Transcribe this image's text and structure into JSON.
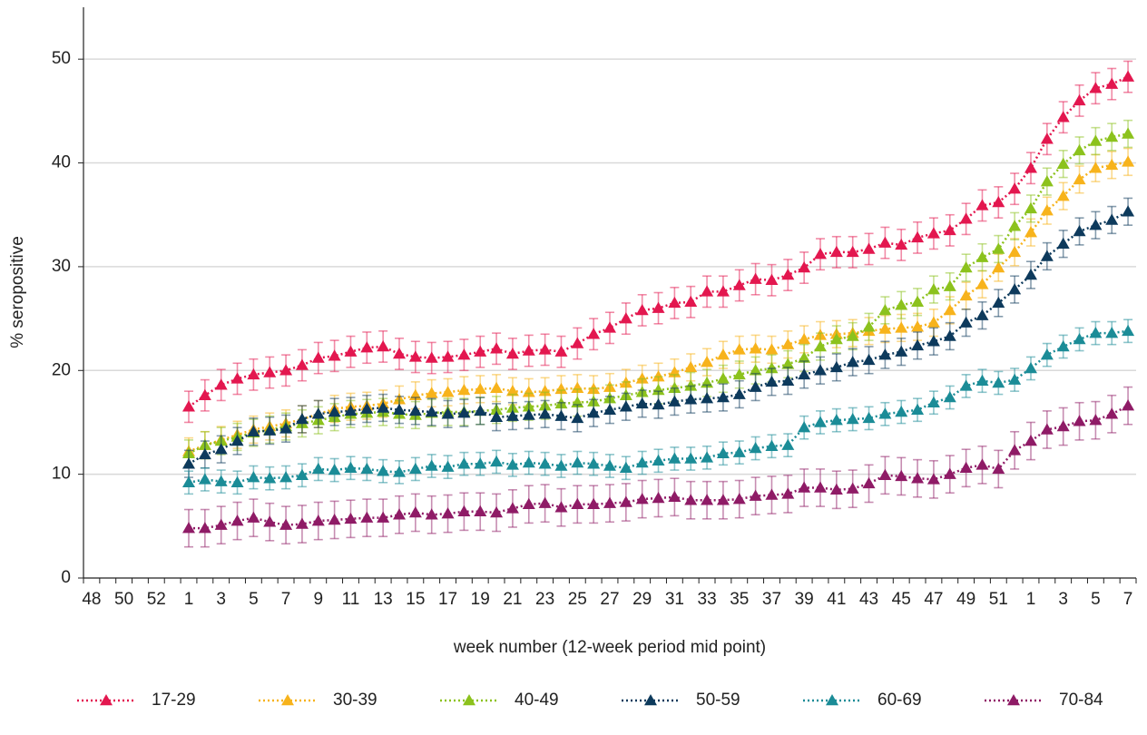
{
  "chart_data": {
    "type": "line",
    "x_label": "week number  (12-week period mid point)",
    "y_label": "% seropositive",
    "categories": [
      "48",
      null,
      "50",
      null,
      "52",
      null,
      "1",
      null,
      "3",
      null,
      "5",
      null,
      "7",
      null,
      "9",
      null,
      "11",
      null,
      "13",
      null,
      "15",
      null,
      "17",
      null,
      "19",
      null,
      "21",
      null,
      "23",
      null,
      "25",
      null,
      "27",
      null,
      "29",
      null,
      "31",
      null,
      "33",
      null,
      "35",
      null,
      "37",
      null,
      "39",
      null,
      "41",
      null,
      "43",
      null,
      "45",
      null,
      "47",
      null,
      "49",
      null,
      "51",
      null,
      "1",
      null,
      "3",
      null,
      "5",
      null,
      "7"
    ],
    "ylim": [
      0,
      55
    ],
    "yticks": [
      0,
      10,
      20,
      30,
      40,
      50
    ],
    "grid": true,
    "series": [
      {
        "name": "17-29",
        "color": "#e3174f",
        "error": 1.5,
        "values": [
          null,
          null,
          null,
          null,
          null,
          null,
          16.5,
          17.6,
          18.6,
          19.2,
          19.6,
          19.8,
          20.0,
          20.5,
          21.2,
          21.4,
          21.8,
          22.2,
          22.3,
          21.6,
          21.3,
          21.2,
          21.3,
          21.5,
          21.8,
          22.1,
          21.6,
          21.9,
          22.0,
          21.8,
          22.6,
          23.5,
          24.1,
          25.0,
          25.8,
          26.0,
          26.5,
          26.6,
          27.6,
          27.6,
          28.2,
          28.8,
          28.7,
          29.2,
          29.9,
          31.2,
          31.4,
          31.4,
          31.7,
          32.3,
          32.1,
          32.8,
          33.2,
          33.5,
          34.6,
          35.9,
          36.2,
          37.5,
          39.5,
          42.3,
          44.4,
          46.0,
          47.2,
          47.6,
          48.3
        ]
      },
      {
        "name": "30-39",
        "color": "#f7b31c",
        "error": 1.3,
        "values": [
          null,
          null,
          null,
          null,
          null,
          null,
          12.2,
          12.8,
          13.3,
          13.8,
          14.3,
          14.6,
          14.9,
          15.3,
          15.8,
          16.3,
          16.5,
          16.6,
          16.8,
          17.2,
          17.6,
          17.8,
          17.9,
          18.1,
          18.2,
          18.3,
          18.0,
          17.9,
          18.0,
          18.2,
          18.3,
          18.2,
          18.4,
          18.8,
          19.2,
          19.4,
          19.8,
          20.3,
          20.8,
          21.5,
          22.0,
          22.1,
          22.0,
          22.5,
          23.0,
          23.4,
          23.5,
          23.6,
          23.8,
          24.0,
          24.1,
          24.2,
          24.6,
          25.8,
          27.2,
          28.3,
          29.9,
          31.4,
          33.3,
          35.4,
          36.8,
          38.4,
          39.5,
          39.8,
          40.1
        ]
      },
      {
        "name": "40-49",
        "color": "#8cc21d",
        "error": 1.3,
        "values": [
          null,
          null,
          null,
          null,
          null,
          null,
          12.0,
          12.8,
          13.2,
          13.6,
          14.0,
          14.3,
          14.6,
          14.9,
          15.2,
          15.5,
          15.8,
          15.9,
          16.0,
          15.8,
          15.7,
          15.9,
          16.0,
          16.0,
          16.1,
          16.2,
          16.4,
          16.5,
          16.6,
          16.8,
          16.9,
          17.0,
          17.3,
          17.6,
          17.9,
          18.1,
          18.3,
          18.5,
          18.8,
          19.2,
          19.6,
          20.0,
          20.2,
          20.6,
          21.2,
          22.3,
          23.0,
          23.3,
          24.2,
          25.8,
          26.3,
          26.6,
          27.8,
          28.1,
          29.9,
          30.9,
          31.7,
          33.9,
          35.6,
          38.2,
          39.9,
          41.2,
          42.1,
          42.5,
          42.8
        ]
      },
      {
        "name": "50-59",
        "color": "#0d3a5c",
        "error": 1.3,
        "values": [
          null,
          null,
          null,
          null,
          null,
          null,
          11.0,
          11.9,
          12.4,
          13.2,
          14.1,
          14.2,
          14.4,
          15.3,
          15.8,
          16.0,
          16.1,
          16.3,
          16.4,
          16.2,
          16.1,
          16.0,
          15.8,
          15.9,
          16.1,
          15.5,
          15.6,
          15.7,
          15.8,
          15.6,
          15.4,
          15.9,
          16.2,
          16.5,
          16.8,
          16.7,
          17.0,
          17.2,
          17.3,
          17.4,
          17.7,
          18.4,
          18.9,
          19.0,
          19.6,
          20.0,
          20.3,
          20.8,
          21.0,
          21.5,
          21.8,
          22.4,
          22.8,
          23.3,
          24.6,
          25.3,
          26.5,
          27.8,
          29.2,
          31.0,
          32.2,
          33.4,
          34.0,
          34.5,
          35.3
        ]
      },
      {
        "name": "60-69",
        "color": "#1b8c97",
        "error": 1.1,
        "values": [
          null,
          null,
          null,
          null,
          null,
          null,
          9.2,
          9.5,
          9.3,
          9.2,
          9.7,
          9.6,
          9.7,
          9.9,
          10.5,
          10.4,
          10.6,
          10.5,
          10.3,
          10.2,
          10.5,
          10.8,
          10.7,
          11.0,
          11.0,
          11.2,
          10.9,
          11.1,
          11.0,
          10.8,
          11.1,
          11.0,
          10.8,
          10.6,
          11.1,
          11.3,
          11.5,
          11.5,
          11.6,
          12.0,
          12.1,
          12.5,
          12.7,
          12.8,
          14.5,
          15.0,
          15.2,
          15.3,
          15.4,
          15.8,
          16.0,
          16.2,
          16.9,
          17.4,
          18.5,
          19.0,
          18.8,
          19.1,
          20.2,
          21.5,
          22.3,
          23.0,
          23.6,
          23.6,
          23.8
        ]
      },
      {
        "name": "70-84",
        "color": "#8f1b66",
        "error": 1.8,
        "values": [
          null,
          null,
          null,
          null,
          null,
          null,
          4.8,
          4.8,
          5.1,
          5.5,
          5.8,
          5.4,
          5.1,
          5.2,
          5.5,
          5.6,
          5.7,
          5.8,
          5.8,
          6.1,
          6.3,
          6.1,
          6.2,
          6.4,
          6.4,
          6.3,
          6.7,
          7.1,
          7.2,
          6.8,
          7.1,
          7.1,
          7.2,
          7.3,
          7.6,
          7.7,
          7.8,
          7.5,
          7.5,
          7.5,
          7.6,
          7.9,
          8.0,
          8.1,
          8.7,
          8.7,
          8.5,
          8.6,
          9.1,
          9.9,
          9.8,
          9.6,
          9.5,
          10.0,
          10.6,
          10.9,
          10.5,
          12.3,
          13.2,
          14.3,
          14.6,
          15.1,
          15.2,
          15.8,
          16.6
        ]
      }
    ]
  }
}
